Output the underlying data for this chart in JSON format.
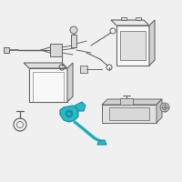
{
  "background_color": "#f0f0f0",
  "sensor_color": "#29b8c8",
  "sensor_outline": "#1a8fa0",
  "line_color": "#666666",
  "gray_fill": "#d8d8d8",
  "white": "#f8f8f8",
  "fig_width": 2.0,
  "fig_height": 2.0,
  "dpi": 100
}
